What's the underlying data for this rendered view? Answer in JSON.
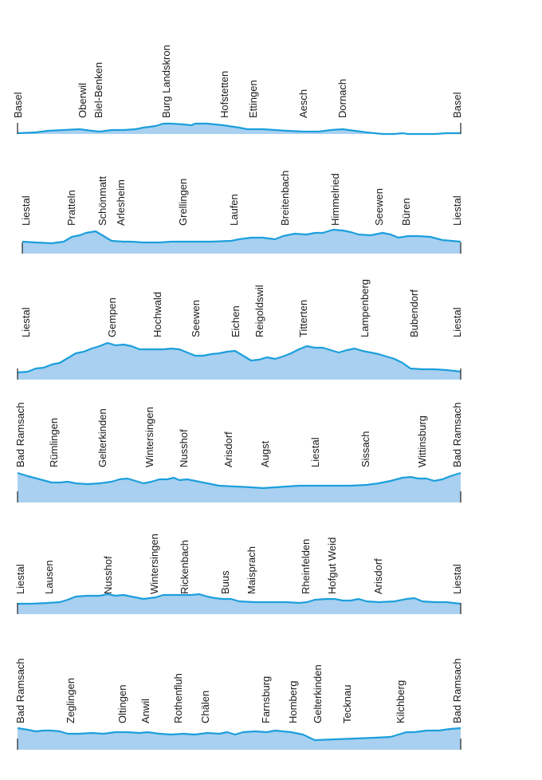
{
  "colors": {
    "fill": "#a9d0f0",
    "line": "#1c9fdc",
    "text": "#1a1a1a"
  },
  "profiles": [
    {
      "id": "route-1",
      "places": [
        "Basel",
        "Oberwil",
        "Biel-Benken",
        "Burg Landskron",
        "Hofstetten",
        "Ettingen",
        "Aesch",
        "Dornach",
        "Basel"
      ]
    },
    {
      "id": "route-2",
      "places": [
        "Liestal",
        "Pratteln",
        "Schönmatt",
        "Arlesheim",
        "Grellingen",
        "Laufen",
        "Breitenbach",
        "Himmelried",
        "Seewen",
        "Büren",
        "Liestal"
      ]
    },
    {
      "id": "route-3",
      "places": [
        "Liestal",
        "Gempen",
        "Hochwald",
        "Seewen",
        "Eichen",
        "Reigoldswil",
        "Titterten",
        "Lampenberg",
        "Bubendorf",
        "Liestal"
      ]
    },
    {
      "id": "route-4",
      "places": [
        "Bad Ramsach",
        "Rümlingen",
        "Gelterkinden",
        "Wintersingen",
        "Nusshof",
        "Arisdorf",
        "Augst",
        "Liestal",
        "Sissach",
        "Wittinsburg",
        "Bad Ramsach"
      ]
    },
    {
      "id": "route-5",
      "places": [
        "Liestal",
        "Lausen",
        "Nusshof",
        "Wintersingen",
        "Rickenbach",
        "Buus",
        "Maisprach",
        "Rheinfelden",
        "Hofgut Weid",
        "Arisdorf",
        "Liestal"
      ]
    },
    {
      "id": "route-6",
      "places": [
        "Bad Ramsach",
        "Zeglingen",
        "Oltingen",
        "Anwil",
        "Rothenfluh",
        "Chälen",
        "Farnsburg",
        "Homberg",
        "Gelterkinden",
        "Tecknau",
        "Kilchberg",
        "Bad Ramsach"
      ]
    }
  ]
}
